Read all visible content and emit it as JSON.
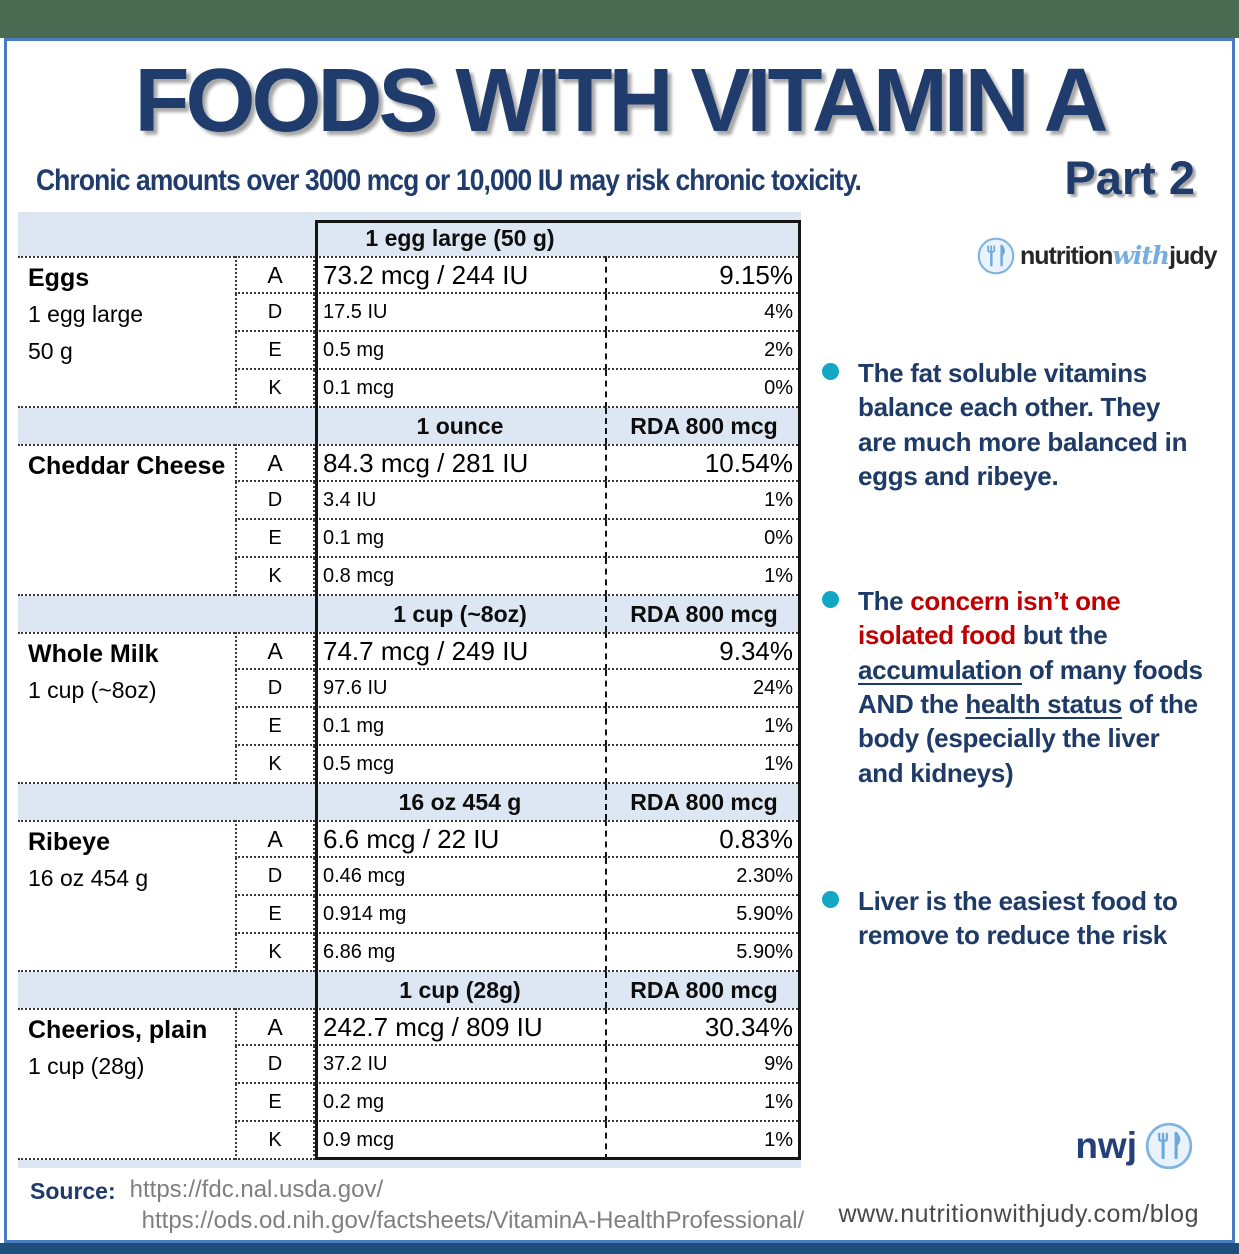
{
  "header": {
    "title": "FOODS WITH VITAMIN A",
    "subtitle": "Chronic amounts over 3000 mcg or 10,000 IU may risk chronic toxicity.",
    "part_label": "Part 2"
  },
  "brand": {
    "logo_text_pre": "nutrition",
    "logo_text_mid": "with",
    "logo_text_post": "judy",
    "footer_logo_text": "nwj",
    "footer_url": "www.nutritionwithjudy.com/blog"
  },
  "table": {
    "rda_header": "RDA 800 mcg",
    "foods": [
      {
        "name": "Eggs",
        "serving_lines": [
          "1 egg large",
          "50 g"
        ],
        "serving_header": "1 egg large (50 g)",
        "show_rda": false,
        "rows": [
          {
            "vitamin": "A",
            "amount": "73.2 mcg / 244 IU",
            "percent": "9.15%"
          },
          {
            "vitamin": "D",
            "amount": "17.5 IU",
            "percent": "4%"
          },
          {
            "vitamin": "E",
            "amount": "0.5 mg",
            "percent": "2%"
          },
          {
            "vitamin": "K",
            "amount": "0.1 mcg",
            "percent": "0%"
          }
        ]
      },
      {
        "name": "Cheddar Cheese",
        "serving_lines": [],
        "serving_header": "1 ounce",
        "show_rda": true,
        "rows": [
          {
            "vitamin": "A",
            "amount": "84.3 mcg / 281 IU",
            "percent": "10.54%"
          },
          {
            "vitamin": "D",
            "amount": "3.4 IU",
            "percent": "1%"
          },
          {
            "vitamin": "E",
            "amount": "0.1 mg",
            "percent": "0%"
          },
          {
            "vitamin": "K",
            "amount": "0.8 mcg",
            "percent": "1%"
          }
        ]
      },
      {
        "name": "Whole Milk",
        "serving_lines": [
          "1 cup (~8oz)"
        ],
        "serving_header": "1 cup (~8oz)",
        "show_rda": true,
        "rows": [
          {
            "vitamin": "A",
            "amount": "74.7 mcg / 249 IU",
            "percent": "9.34%"
          },
          {
            "vitamin": "D",
            "amount": "97.6 IU",
            "percent": "24%"
          },
          {
            "vitamin": "E",
            "amount": "0.1 mg",
            "percent": "1%"
          },
          {
            "vitamin": "K",
            "amount": "0.5 mcg",
            "percent": "1%"
          }
        ]
      },
      {
        "name": "Ribeye",
        "serving_lines": [
          "16 oz 454 g"
        ],
        "serving_header": "16 oz 454 g",
        "show_rda": true,
        "rows": [
          {
            "vitamin": "A",
            "amount": "6.6 mcg / 22 IU",
            "percent": "0.83%"
          },
          {
            "vitamin": "D",
            "amount": "0.46 mcg",
            "percent": "2.30%"
          },
          {
            "vitamin": "E",
            "amount": "0.914 mg",
            "percent": "5.90%"
          },
          {
            "vitamin": "K",
            "amount": "6.86 mg",
            "percent": "5.90%"
          }
        ]
      },
      {
        "name": "Cheerios, plain",
        "serving_lines": [
          "1 cup (28g)"
        ],
        "serving_header": "1 cup (28g)",
        "show_rda": true,
        "rows": [
          {
            "vitamin": "A",
            "amount": "242.7 mcg / 809 IU",
            "percent": "30.34%"
          },
          {
            "vitamin": "D",
            "amount": "37.2 IU",
            "percent": "9%"
          },
          {
            "vitamin": "E",
            "amount": "0.2 mg",
            "percent": "1%"
          },
          {
            "vitamin": "K",
            "amount": "0.9 mcg",
            "percent": "1%"
          }
        ]
      }
    ]
  },
  "notes": [
    {
      "segments": [
        {
          "text": "The fat soluble vitamins balance each other.  They are much more balanced in eggs and ribeye.",
          "style": "normal"
        }
      ]
    },
    {
      "segments": [
        {
          "text": "The ",
          "style": "normal"
        },
        {
          "text": "concern isn’t one isolated food",
          "style": "red"
        },
        {
          "text": " but the ",
          "style": "normal"
        },
        {
          "text": "accumulation",
          "style": "underline"
        },
        {
          "text": " of many foods AND the ",
          "style": "normal"
        },
        {
          "text": "health status",
          "style": "underline"
        },
        {
          "text": " of the body (especially the liver and kidneys)",
          "style": "normal"
        }
      ]
    },
    {
      "segments": [
        {
          "text": "Liver is the easiest food to remove to reduce the risk",
          "style": "normal"
        }
      ]
    }
  ],
  "source": {
    "label": "Source:",
    "links": [
      "https://fdc.nal.usda.gov/",
      "https://ods.od.nih.gov/factsheets/VitaminA-HealthProfessional/"
    ]
  },
  "colors": {
    "title_navy": "#1f3c6d",
    "note_navy": "#1e3a66",
    "alert_red": "#c00000",
    "bullet_teal": "#13a7c6",
    "table_light_blue": "#dce7f3",
    "frame_blue": "#4a7cc2",
    "top_band_green": "#4a6b52",
    "bottom_band_navy": "#1d4e7c",
    "logo_blue": "#74aedd",
    "link_gray": "#7f7f7f"
  }
}
